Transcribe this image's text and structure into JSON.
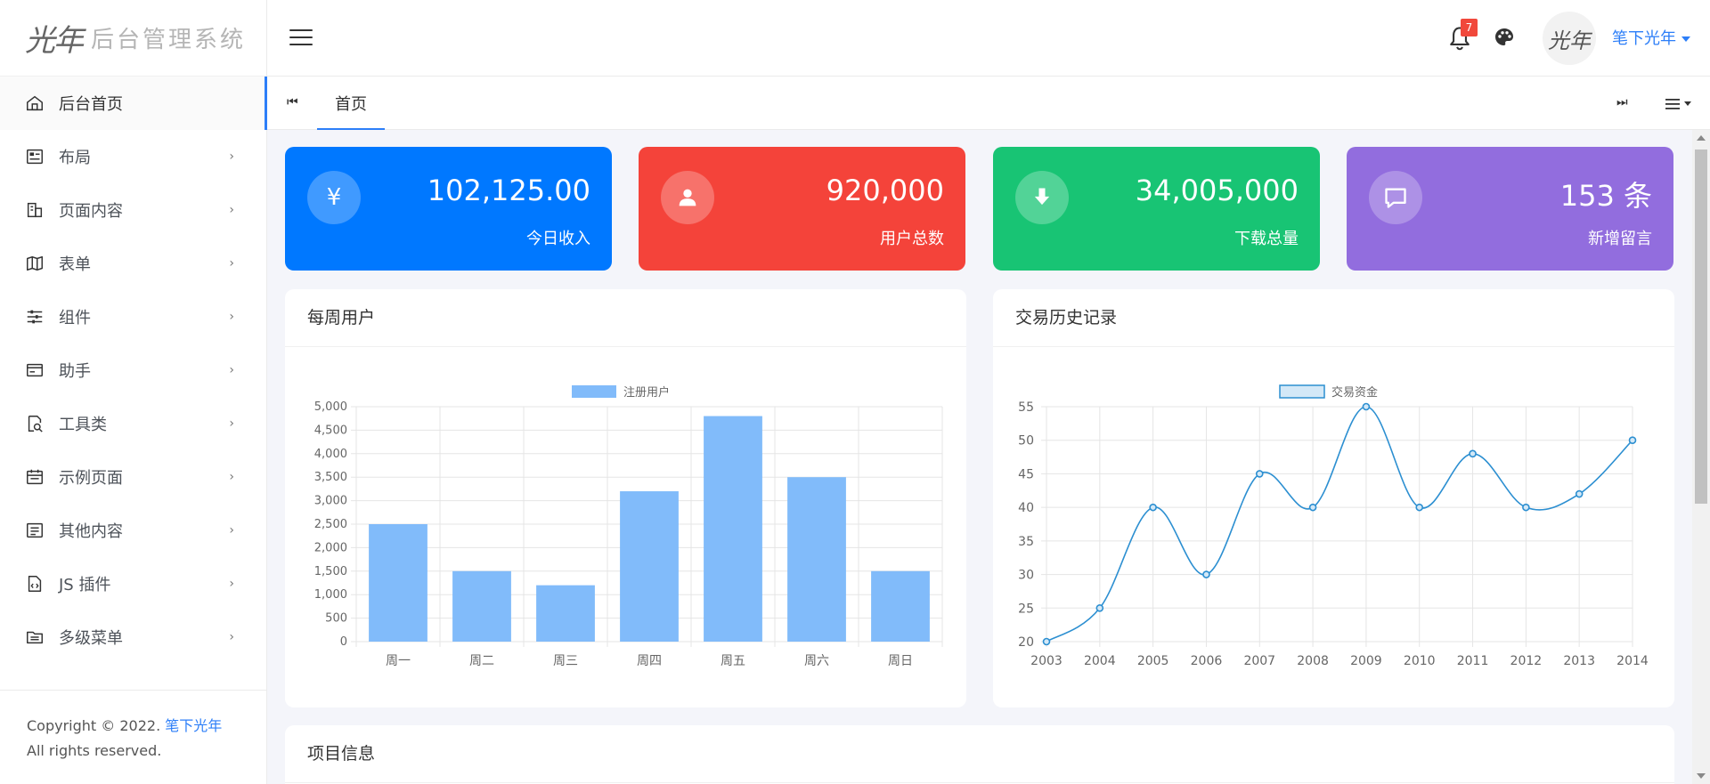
{
  "app": {
    "logo_mark": "光年",
    "logo_text": "后台管理系统"
  },
  "sidebar": {
    "items": [
      {
        "label": "后台首页",
        "icon": "home-icon",
        "active": true,
        "has_children": false
      },
      {
        "label": "布局",
        "icon": "layout-icon",
        "has_children": true
      },
      {
        "label": "页面内容",
        "icon": "building-icon",
        "has_children": true
      },
      {
        "label": "表单",
        "icon": "map-icon",
        "has_children": true
      },
      {
        "label": "组件",
        "icon": "sliders-icon",
        "has_children": true
      },
      {
        "label": "助手",
        "icon": "card-icon",
        "has_children": true
      },
      {
        "label": "工具类",
        "icon": "search-doc-icon",
        "has_children": true
      },
      {
        "label": "示例页面",
        "icon": "calendar-icon",
        "has_children": true
      },
      {
        "label": "其他内容",
        "icon": "list-icon",
        "has_children": true
      },
      {
        "label": "JS 插件",
        "icon": "code-file-icon",
        "has_children": true
      },
      {
        "label": "多级菜单",
        "icon": "folder-icon",
        "has_children": true
      }
    ],
    "chevron": "›",
    "footer": {
      "prefix": "Copyright © 2022. ",
      "brand": "笔下光年",
      "suffix": " All rights reserved."
    }
  },
  "header": {
    "notification_count": "7",
    "avatar_text": "光年",
    "username": "笔下光年"
  },
  "tabs": {
    "first_btn": "⏮",
    "last_btn": "⏭",
    "items": [
      {
        "label": "首页",
        "active": true
      }
    ]
  },
  "stats": [
    {
      "value": "102,125.00",
      "label": "今日收入",
      "icon": "yen-icon",
      "glyph": "¥",
      "color": "#0078ff"
    },
    {
      "value": "920,000",
      "label": "用户总数",
      "icon": "user-icon",
      "glyph": "",
      "color": "#f4433a"
    },
    {
      "value": "34,005,000",
      "label": "下载总量",
      "icon": "download-icon",
      "glyph": "",
      "color": "#18c474"
    },
    {
      "value": "153 条",
      "label": "新增留言",
      "icon": "message-icon",
      "glyph": "",
      "color": "#926dde"
    }
  ],
  "panels": {
    "weekly_users": {
      "title": "每周用户"
    },
    "transactions": {
      "title": "交易历史记录"
    },
    "project_info": {
      "title": "项目信息"
    }
  },
  "chart_data": [
    {
      "type": "bar",
      "title": "",
      "categories": [
        "周一",
        "周二",
        "周三",
        "周四",
        "周五",
        "周六",
        "周日"
      ],
      "series": [
        {
          "name": "注册用户",
          "values": [
            2500,
            1500,
            1200,
            3200,
            4800,
            3500,
            1500
          ]
        }
      ],
      "ylim": [
        0,
        5000
      ],
      "yticks": [
        0,
        500,
        1000,
        1500,
        2000,
        2500,
        3000,
        3500,
        4000,
        4500,
        5000
      ],
      "ytick_labels": [
        "0",
        "500",
        "1,000",
        "1,500",
        "2,000",
        "2,500",
        "3,000",
        "3,500",
        "4,000",
        "4,500",
        "5,000"
      ],
      "grid": true,
      "legend": "top",
      "color": "#81bbfa"
    },
    {
      "type": "line",
      "title": "",
      "x": [
        "2003",
        "2004",
        "2005",
        "2006",
        "2007",
        "2008",
        "2009",
        "2010",
        "2011",
        "2012",
        "2013",
        "2014"
      ],
      "series": [
        {
          "name": "交易资金",
          "values": [
            20,
            25,
            40,
            30,
            45,
            40,
            55,
            40,
            48,
            40,
            42,
            50
          ]
        }
      ],
      "ylim": [
        20,
        55
      ],
      "yticks": [
        20,
        25,
        30,
        35,
        40,
        45,
        50,
        55
      ],
      "grid": true,
      "legend": "top",
      "color": "#2c8fd1"
    }
  ]
}
